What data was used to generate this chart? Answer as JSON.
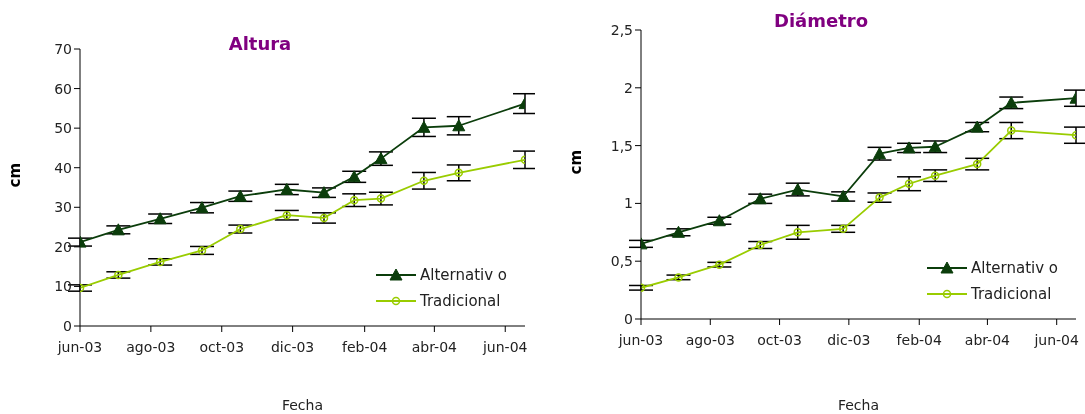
{
  "chart_data": [
    {
      "type": "line",
      "title": "Altura",
      "xlabel": "Fecha",
      "ylabel": "cm",
      "x": [
        "2003-06-01",
        "2003-07-04",
        "2003-08-09",
        "2003-09-14",
        "2003-10-17",
        "2003-11-26",
        "2003-12-28",
        "2004-01-23",
        "2004-02-15",
        "2004-03-23",
        "2004-04-22",
        "2004-06-18"
      ],
      "series": [
        {
          "name": "Alternativ o",
          "color": "#0b3d0b",
          "marker": "triangle",
          "values": [
            21.2,
            24.3,
            27.1,
            29.9,
            32.8,
            34.5,
            33.7,
            37.7,
            42.3,
            50.2,
            50.6,
            56.2
          ],
          "errors": [
            1,
            1,
            1.2,
            1.3,
            1.3,
            1.3,
            1.2,
            1.4,
            1.7,
            2.3,
            2.3,
            2.5
          ]
        },
        {
          "name": "Tradicional",
          "color": "#99cc00",
          "marker": "circle",
          "values": [
            9.6,
            12.9,
            16.2,
            19.1,
            24.5,
            28.0,
            27.3,
            31.8,
            32.2,
            36.7,
            38.7,
            42.0
          ],
          "errors": [
            0.8,
            0.8,
            0.8,
            1.0,
            1.0,
            1.2,
            1.3,
            1.6,
            1.6,
            2.1,
            2.0,
            2.2
          ]
        }
      ],
      "xlim": [
        "2003-06-01",
        "2004-06-18"
      ],
      "xticks": [
        {
          "value": "2003-06-01",
          "label": "jun-03"
        },
        {
          "value": "2003-08-01",
          "label": "ago-03"
        },
        {
          "value": "2003-10-01",
          "label": "oct-03"
        },
        {
          "value": "2003-12-01",
          "label": "dic-03"
        },
        {
          "value": "2004-02-01",
          "label": "feb-04"
        },
        {
          "value": "2004-04-01",
          "label": "abr-04"
        },
        {
          "value": "2004-06-01",
          "label": "jun-04"
        }
      ],
      "ylim": [
        0,
        70
      ],
      "yticks": [
        0,
        10,
        20,
        30,
        40,
        50,
        60,
        70
      ],
      "grid": false,
      "legend": "bottom right"
    },
    {
      "type": "line",
      "title": "Diámetro",
      "xlabel": "Fecha",
      "ylabel": "cm",
      "x": [
        "2003-06-01",
        "2003-07-04",
        "2003-08-09",
        "2003-09-14",
        "2003-10-17",
        "2003-11-26",
        "2003-12-28",
        "2004-01-23",
        "2004-02-15",
        "2004-03-23",
        "2004-04-22",
        "2004-06-18"
      ],
      "series": [
        {
          "name": "Alternativ o",
          "color": "#0b3d0b",
          "marker": "triangle",
          "values": [
            0.65,
            0.75,
            0.85,
            1.04,
            1.12,
            1.06,
            1.43,
            1.48,
            1.49,
            1.66,
            1.87,
            1.91
          ],
          "errors": [
            0.03,
            0.03,
            0.03,
            0.04,
            0.055,
            0.04,
            0.055,
            0.04,
            0.05,
            0.04,
            0.05,
            0.07
          ]
        },
        {
          "name": "Tradicional",
          "color": "#99cc00",
          "marker": "circle",
          "values": [
            0.27,
            0.36,
            0.47,
            0.64,
            0.75,
            0.78,
            1.05,
            1.17,
            1.24,
            1.34,
            1.63,
            1.59
          ],
          "errors": [
            0.02,
            0.02,
            0.02,
            0.03,
            0.06,
            0.03,
            0.04,
            0.06,
            0.05,
            0.05,
            0.07,
            0.07
          ]
        }
      ],
      "xlim": [
        "2003-06-01",
        "2004-06-18"
      ],
      "xticks": [
        {
          "value": "2003-06-01",
          "label": "jun-03"
        },
        {
          "value": "2003-08-01",
          "label": "ago-03"
        },
        {
          "value": "2003-10-01",
          "label": "oct-03"
        },
        {
          "value": "2003-12-01",
          "label": "dic-03"
        },
        {
          "value": "2004-02-01",
          "label": "feb-04"
        },
        {
          "value": "2004-04-01",
          "label": "abr-04"
        },
        {
          "value": "2004-06-01",
          "label": "jun-04"
        }
      ],
      "ylim": [
        0,
        2.5
      ],
      "yticks": [
        0,
        {
          "value": 0.5,
          "label": "0,5"
        },
        1,
        {
          "value": 1.5,
          "label": "1,5"
        },
        2,
        {
          "value": 2.5,
          "label": "2,5"
        }
      ],
      "grid": false,
      "legend": "bottom right"
    }
  ]
}
